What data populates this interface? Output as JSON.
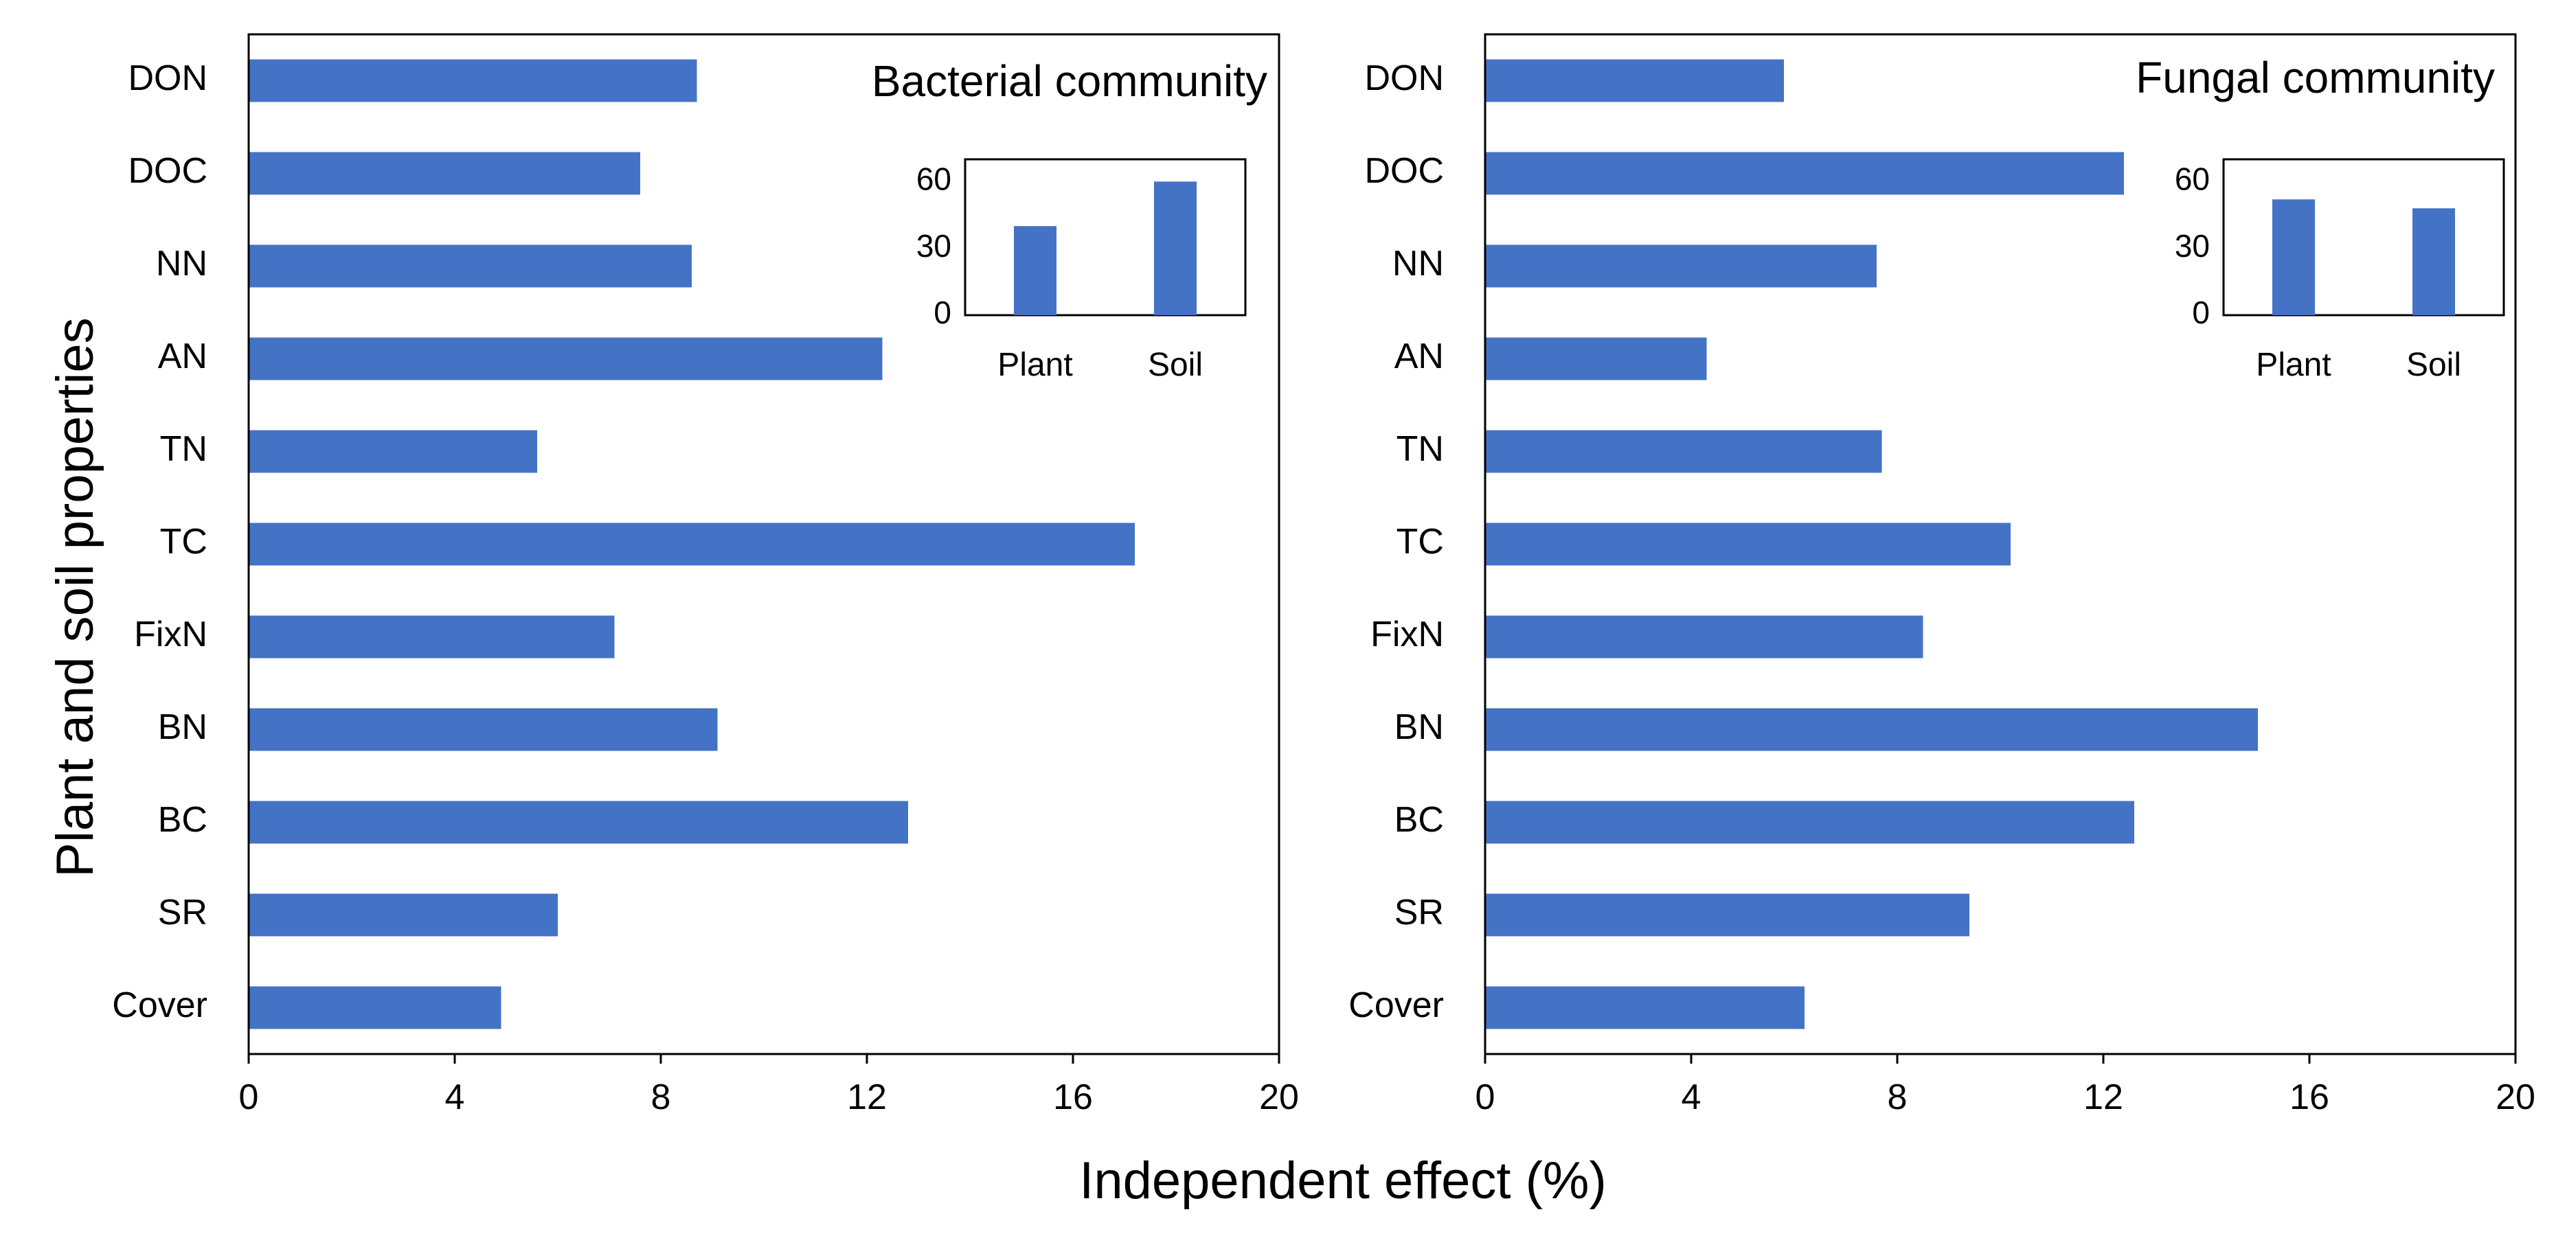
{
  "figure": {
    "ylabel": "Plant and soil properties",
    "xlabel": "Independent effect (%)",
    "bar_color": "#4472C4"
  },
  "chart_data": [
    {
      "type": "bar",
      "orientation": "horizontal",
      "title": "Bacterial community",
      "categories": [
        "DON",
        "DOC",
        "NN",
        "AN",
        "TN",
        "TC",
        "FixN",
        "BN",
        "BC",
        "SR",
        "Cover"
      ],
      "values": [
        8.7,
        7.6,
        8.6,
        12.3,
        5.6,
        17.2,
        7.1,
        9.1,
        12.8,
        6.0,
        4.9
      ],
      "xlim": [
        0,
        20
      ],
      "xticks": [
        0,
        4,
        8,
        12,
        16,
        20
      ],
      "inset": {
        "type": "bar",
        "categories": [
          "Plant",
          "Soil"
        ],
        "values": [
          40,
          60
        ],
        "ylim": [
          0,
          70
        ],
        "yticks": [
          0,
          30,
          60
        ]
      }
    },
    {
      "type": "bar",
      "orientation": "horizontal",
      "title": "Fungal community",
      "categories": [
        "DON",
        "DOC",
        "NN",
        "AN",
        "TN",
        "TC",
        "FixN",
        "BN",
        "BC",
        "SR",
        "Cover"
      ],
      "values": [
        5.8,
        12.4,
        7.6,
        4.3,
        7.7,
        10.2,
        8.5,
        15.0,
        12.6,
        9.4,
        6.2
      ],
      "xlim": [
        0,
        20
      ],
      "xticks": [
        0,
        4,
        8,
        12,
        16,
        20
      ],
      "inset": {
        "type": "bar",
        "categories": [
          "Plant",
          "Soil"
        ],
        "values": [
          52,
          48
        ],
        "ylim": [
          0,
          70
        ],
        "yticks": [
          0,
          30,
          60
        ]
      }
    }
  ]
}
